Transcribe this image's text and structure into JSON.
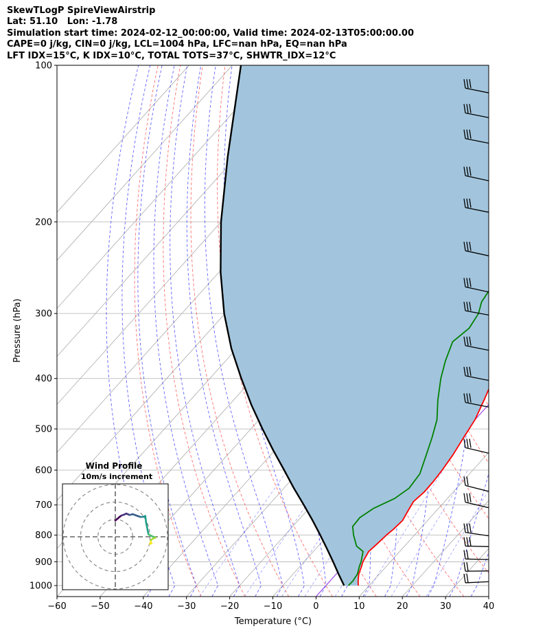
{
  "header": {
    "line1": "SkewTLogP SpireViewAirstrip",
    "line2": "Lat: 51.10   Lon: -1.78",
    "line3": "Simulation start time: 2024-02-12_00:00:00, Valid time: 2024-02-13T05:00:00.00",
    "line4": "CAPE=0 j/kg, CIN=0 j/kg, LCL=1004 hPa, LFC=nan hPa, EQ=nan hPa",
    "line5": "LFT IDX=15°C, K IDX=10°C, TOTAL TOTS=37°C, SHWTR_IDX=12°C"
  },
  "chart_data": {
    "type": "line",
    "subtype": "skewT-logP",
    "xlabel": "Temperature (°C)",
    "ylabel": "Pressure (hPa)",
    "xlim": [
      -60,
      40
    ],
    "ylim": [
      1050,
      100
    ],
    "y_scale": "log",
    "x_ticks": [
      -60,
      -50,
      -40,
      -30,
      -20,
      -10,
      0,
      10,
      20,
      30,
      40
    ],
    "x_tick_labels": [
      "−60",
      "−50",
      "−40",
      "−30",
      "−20",
      "−10",
      "0",
      "10",
      "20",
      "30",
      "40"
    ],
    "y_ticks": [
      1000,
      900,
      800,
      700,
      600,
      500,
      400,
      300,
      200,
      100
    ],
    "grid": true,
    "colors": {
      "temperature": "#ff0000",
      "dewpoint": "#008000",
      "parcel": "#000000",
      "shade": "#a2c5dd",
      "dry_adiabat": "#ff4040",
      "moist_adiabat": "#3030ff",
      "mixing_ratio": "#6060ff",
      "isotherm": "#aaaaaa",
      "zero_isotherm": "#8a2be2",
      "wind_barb": "#000000"
    },
    "series": [
      {
        "role": "temperature",
        "points": [
          [
            1000,
            7.5
          ],
          [
            980,
            6.5
          ],
          [
            950,
            5.2
          ],
          [
            920,
            4.3
          ],
          [
            900,
            3.6
          ],
          [
            860,
            2.8
          ],
          [
            830,
            3.2
          ],
          [
            800,
            3.5
          ],
          [
            780,
            3.9
          ],
          [
            750,
            4.2
          ],
          [
            720,
            3.5
          ],
          [
            690,
            2.8
          ],
          [
            660,
            3.3
          ],
          [
            630,
            3.2
          ],
          [
            600,
            2.9
          ],
          [
            560,
            2.2
          ],
          [
            520,
            1.1
          ],
          [
            480,
            0.0
          ],
          [
            440,
            -2.0
          ],
          [
            400,
            -4.3
          ],
          [
            360,
            -7.8
          ],
          [
            320,
            -11.2
          ],
          [
            290,
            -14.7
          ],
          [
            270,
            -16.7
          ],
          [
            250,
            -17.6
          ],
          [
            240,
            -16.6
          ],
          [
            225,
            -13.7
          ],
          [
            210,
            -10.8
          ],
          [
            200,
            -8.8
          ],
          [
            180,
            -5.6
          ],
          [
            160,
            -2.2
          ],
          [
            140,
            2.2
          ],
          [
            120,
            6.9
          ],
          [
            110,
            10.0
          ],
          [
            100,
            12.9
          ]
        ]
      },
      {
        "role": "dewpoint",
        "points": [
          [
            1000,
            5.2
          ],
          [
            980,
            5.3
          ],
          [
            950,
            4.9
          ],
          [
            920,
            3.8
          ],
          [
            900,
            3.2
          ],
          [
            860,
            1.5
          ],
          [
            840,
            -1.1
          ],
          [
            800,
            -4.1
          ],
          [
            770,
            -6.1
          ],
          [
            740,
            -6.3
          ],
          [
            710,
            -5.0
          ],
          [
            680,
            -2.2
          ],
          [
            650,
            -1.0
          ],
          [
            610,
            -1.5
          ],
          [
            560,
            -4.0
          ],
          [
            520,
            -6.2
          ],
          [
            480,
            -8.8
          ],
          [
            440,
            -12.7
          ],
          [
            400,
            -16.5
          ],
          [
            370,
            -19.1
          ],
          [
            340,
            -21.4
          ],
          [
            320,
            -20.4
          ],
          [
            300,
            -21.3
          ],
          [
            285,
            -23.0
          ],
          [
            265,
            -23.9
          ],
          [
            250,
            -23.5
          ],
          [
            230,
            -20.4
          ],
          [
            215,
            -17.6
          ],
          [
            205,
            -18.7
          ],
          [
            190,
            -21.7
          ],
          [
            175,
            -24.8
          ],
          [
            165,
            -25.4
          ],
          [
            150,
            -22.0
          ],
          [
            135,
            -18.0
          ],
          [
            120,
            -13.0
          ],
          [
            100,
            -8.0
          ]
        ]
      },
      {
        "role": "parcel",
        "points": [
          [
            1000,
            4.2
          ],
          [
            950,
            0.5
          ],
          [
            900,
            -3.3
          ],
          [
            850,
            -7.4
          ],
          [
            800,
            -11.8
          ],
          [
            750,
            -16.6
          ],
          [
            700,
            -21.9
          ],
          [
            650,
            -27.7
          ],
          [
            600,
            -33.7
          ],
          [
            550,
            -40.3
          ],
          [
            500,
            -47.3
          ],
          [
            450,
            -54.8
          ],
          [
            400,
            -62.7
          ],
          [
            350,
            -71.3
          ],
          [
            300,
            -80.2
          ],
          [
            250,
            -89.6
          ],
          [
            200,
            -100.0
          ],
          [
            150,
            -112.0
          ],
          [
            100,
            -128.0
          ]
        ]
      }
    ],
    "wind_profile_inset": {
      "title": "Wind Profile",
      "subtitle": "10m/s increment",
      "hodograph": [
        [
          0.0,
          10.3
        ],
        [
          1.5,
          11.5
        ],
        [
          2.8,
          12.7
        ],
        [
          4.0,
          13.5
        ],
        [
          5.5,
          14.0
        ],
        [
          7.0,
          14.7
        ],
        [
          9.0,
          13.8
        ],
        [
          11.0,
          14.3
        ],
        [
          14.0,
          13.2
        ],
        [
          16.0,
          12.5
        ],
        [
          18.0,
          12.7
        ],
        [
          19.0,
          13.2
        ],
        [
          19.5,
          9.0
        ],
        [
          20.5,
          4.0
        ],
        [
          21.0,
          1.5
        ],
        [
          23.0,
          0.5
        ],
        [
          24.0,
          0.0
        ],
        [
          25.5,
          -0.5
        ],
        [
          24.2,
          -1.0
        ],
        [
          22.5,
          -2.0
        ],
        [
          22.5,
          -3.0
        ],
        [
          22.0,
          -4.5
        ],
        [
          23.0,
          -4.0
        ]
      ]
    },
    "wind_barbs": [
      {
        "pressure": 1000,
        "u": 16,
        "v": 16
      },
      {
        "pressure": 950,
        "u": 19,
        "v": 14
      },
      {
        "pressure": 900,
        "u": 21,
        "v": 12
      },
      {
        "pressure": 850,
        "u": 22,
        "v": 12
      },
      {
        "pressure": 800,
        "u": 25,
        "v": 5
      },
      {
        "pressure": 700,
        "u": 28,
        "v": 0
      },
      {
        "pressure": 650,
        "u": 24,
        "v": -1
      },
      {
        "pressure": 550,
        "u": 25,
        "v": 0
      },
      {
        "pressure": 450,
        "u": 25,
        "v": 2
      },
      {
        "pressure": 400,
        "u": 25,
        "v": 2
      },
      {
        "pressure": 350,
        "u": 25,
        "v": 2
      },
      {
        "pressure": 300,
        "u": 25,
        "v": 3
      },
      {
        "pressure": 270,
        "u": 25,
        "v": 1
      },
      {
        "pressure": 230,
        "u": 25,
        "v": 1
      },
      {
        "pressure": 190,
        "u": 25,
        "v": 2
      },
      {
        "pressure": 165,
        "u": 25,
        "v": 1
      },
      {
        "pressure": 140,
        "u": 25,
        "v": 2
      },
      {
        "pressure": 125,
        "u": 25,
        "v": 2
      },
      {
        "pressure": 112,
        "u": 25,
        "v": 2
      }
    ]
  }
}
